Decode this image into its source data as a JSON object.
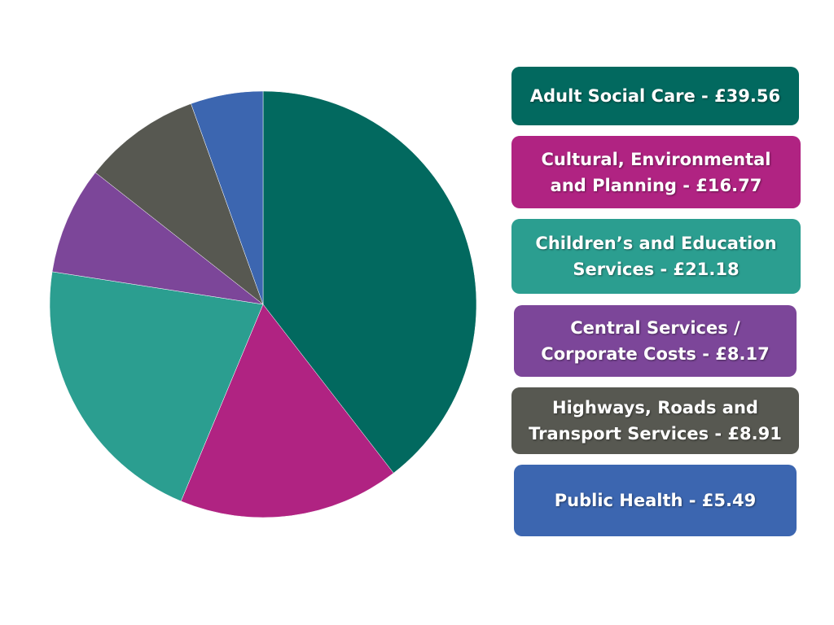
{
  "chart_data": {
    "type": "pie",
    "title": "",
    "currency": "£",
    "categories": [
      "Adult Social Care",
      "Cultural, Environmental and Planning",
      "Children’s and Education Services",
      "Central Services / Corporate Costs",
      "Highways, Roads and Transport Services",
      "Public Health"
    ],
    "values": [
      39.56,
      16.77,
      21.18,
      8.17,
      8.91,
      5.49
    ],
    "colors": [
      "#02695f",
      "#b02382",
      "#2b9e90",
      "#7c4699",
      "#575851",
      "#3c66b0"
    ],
    "labels": [
      "Adult Social Care - £39.56",
      "Cultural, Environmental and Planning - £16.77",
      "Children’s and Education Services - £21.18",
      "Central Services / Corporate Costs - £8.17",
      "Highways, Roads and Transport Services - £8.91",
      "Public Health - £5.49"
    ],
    "start_angle": "12 o'clock",
    "direction": "clockwise",
    "legend_position": "right"
  }
}
